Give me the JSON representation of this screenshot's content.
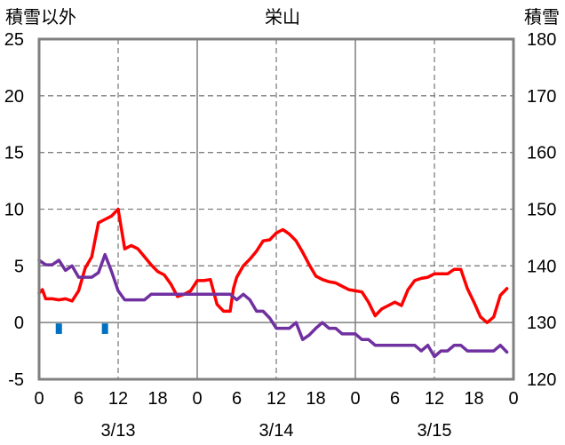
{
  "chart_data": {
    "type": "line",
    "title": "栄山",
    "ylabel_left": "積雪以外",
    "ylabel_right": "積雪",
    "left_axis": {
      "ylim": [
        -5,
        25
      ],
      "ticks": [
        "-5",
        "0",
        "5",
        "10",
        "15",
        "20",
        "25"
      ]
    },
    "right_axis": {
      "ylim": [
        120,
        180
      ],
      "ticks": [
        "120",
        "130",
        "140",
        "150",
        "160",
        "170",
        "180"
      ]
    },
    "x_axis": {
      "hour_range": [
        0,
        72
      ],
      "hour_tick_labels": [
        "0",
        "6",
        "12",
        "18",
        "0",
        "6",
        "12",
        "18",
        "0",
        "6",
        "12",
        "18",
        "0"
      ],
      "date_labels": [
        "3/13",
        "3/14",
        "3/15"
      ]
    },
    "grid": true,
    "colors": {
      "temperature": "#ff0000",
      "second_series": "#7030a0",
      "precipitation": "#0070c0",
      "grid": "#7f7f7f",
      "frame": "#808080"
    },
    "series": [
      {
        "axis": "left",
        "color": "#ff0000",
        "points": [
          [
            0,
            2.6
          ],
          [
            0.5,
            2.9
          ],
          [
            1,
            2.1
          ],
          [
            2,
            2.1
          ],
          [
            3,
            2.0
          ],
          [
            4,
            2.1
          ],
          [
            5,
            1.9
          ],
          [
            6,
            2.8
          ],
          [
            7,
            4.8
          ],
          [
            8,
            5.8
          ],
          [
            9,
            8.8
          ],
          [
            10,
            9.1
          ],
          [
            11,
            9.4
          ],
          [
            12,
            10.0
          ],
          [
            13,
            6.5
          ],
          [
            14,
            6.8
          ],
          [
            15,
            6.5
          ],
          [
            16,
            5.8
          ],
          [
            17,
            5.1
          ],
          [
            18,
            4.5
          ],
          [
            19,
            4.2
          ],
          [
            20,
            3.4
          ],
          [
            21,
            2.3
          ],
          [
            22,
            2.5
          ],
          [
            23,
            2.8
          ],
          [
            24,
            3.7
          ],
          [
            25,
            3.7
          ],
          [
            26,
            3.8
          ],
          [
            27,
            1.6
          ],
          [
            28,
            1.0
          ],
          [
            29,
            1.0
          ],
          [
            29.5,
            3.0
          ],
          [
            30,
            4.0
          ],
          [
            31,
            5.0
          ],
          [
            32,
            5.6
          ],
          [
            33,
            6.3
          ],
          [
            34,
            7.2
          ],
          [
            35,
            7.3
          ],
          [
            36,
            7.9
          ],
          [
            37,
            8.2
          ],
          [
            38,
            7.8
          ],
          [
            39,
            7.2
          ],
          [
            40,
            6.2
          ],
          [
            41,
            5.1
          ],
          [
            42,
            4.1
          ],
          [
            43,
            3.8
          ],
          [
            44,
            3.6
          ],
          [
            45,
            3.5
          ],
          [
            46,
            3.2
          ],
          [
            47,
            2.9
          ],
          [
            48,
            2.8
          ],
          [
            49,
            2.7
          ],
          [
            50,
            1.8
          ],
          [
            51,
            0.6
          ],
          [
            52,
            1.2
          ],
          [
            53,
            1.5
          ],
          [
            54,
            1.8
          ],
          [
            55,
            1.5
          ],
          [
            56,
            2.9
          ],
          [
            57,
            3.7
          ],
          [
            58,
            3.9
          ],
          [
            59,
            4.0
          ],
          [
            60,
            4.3
          ],
          [
            61,
            4.3
          ],
          [
            62,
            4.3
          ],
          [
            63,
            4.7
          ],
          [
            64,
            4.7
          ],
          [
            65,
            3.0
          ],
          [
            66,
            1.8
          ],
          [
            67,
            0.5
          ],
          [
            68,
            0.0
          ],
          [
            69,
            0.5
          ],
          [
            70,
            2.4
          ],
          [
            71,
            3.0
          ]
        ]
      },
      {
        "axis": "left",
        "color": "#7030a0",
        "points": [
          [
            0,
            5.5
          ],
          [
            1,
            5.1
          ],
          [
            2,
            5.1
          ],
          [
            3,
            5.5
          ],
          [
            4,
            4.6
          ],
          [
            5,
            5.0
          ],
          [
            6,
            4.0
          ],
          [
            7,
            4.0
          ],
          [
            8,
            4.0
          ],
          [
            9,
            4.4
          ],
          [
            10,
            6.0
          ],
          [
            11,
            4.5
          ],
          [
            12,
            2.8
          ],
          [
            13,
            2.0
          ],
          [
            14,
            2.0
          ],
          [
            15,
            2.0
          ],
          [
            16,
            2.0
          ],
          [
            17,
            2.5
          ],
          [
            18,
            2.5
          ],
          [
            19,
            2.5
          ],
          [
            20,
            2.5
          ],
          [
            21,
            2.5
          ],
          [
            22,
            2.5
          ],
          [
            23,
            2.5
          ],
          [
            24,
            2.5
          ],
          [
            25,
            2.5
          ],
          [
            26,
            2.5
          ],
          [
            27,
            2.5
          ],
          [
            28,
            2.5
          ],
          [
            29,
            2.5
          ],
          [
            30,
            2.0
          ],
          [
            31,
            2.5
          ],
          [
            32,
            2.0
          ],
          [
            33,
            1.0
          ],
          [
            34,
            1.0
          ],
          [
            35,
            0.4
          ],
          [
            36,
            -0.5
          ],
          [
            37,
            -0.5
          ],
          [
            38,
            -0.5
          ],
          [
            39,
            0.0
          ],
          [
            40,
            -1.5
          ],
          [
            41,
            -1.1
          ],
          [
            42,
            -0.5
          ],
          [
            43,
            0.0
          ],
          [
            44,
            -0.5
          ],
          [
            45,
            -0.5
          ],
          [
            46,
            -1.0
          ],
          [
            47,
            -1.0
          ],
          [
            48,
            -1.0
          ],
          [
            49,
            -1.5
          ],
          [
            50,
            -1.5
          ],
          [
            51,
            -2.0
          ],
          [
            52,
            -2.0
          ],
          [
            53,
            -2.0
          ],
          [
            54,
            -2.0
          ],
          [
            55,
            -2.0
          ],
          [
            56,
            -2.0
          ],
          [
            57,
            -2.0
          ],
          [
            58,
            -2.5
          ],
          [
            59,
            -2.0
          ],
          [
            60,
            -3.0
          ],
          [
            61,
            -2.5
          ],
          [
            62,
            -2.5
          ],
          [
            63,
            -2.0
          ],
          [
            64,
            -2.0
          ],
          [
            65,
            -2.5
          ],
          [
            66,
            -2.5
          ],
          [
            67,
            -2.5
          ],
          [
            68,
            -2.5
          ],
          [
            69,
            -2.5
          ],
          [
            70,
            -2.0
          ],
          [
            71,
            -2.6
          ]
        ]
      },
      {
        "axis": "left",
        "color": "#0070c0",
        "bars": [
          [
            3,
            -1
          ],
          [
            10,
            -1
          ]
        ]
      }
    ]
  }
}
